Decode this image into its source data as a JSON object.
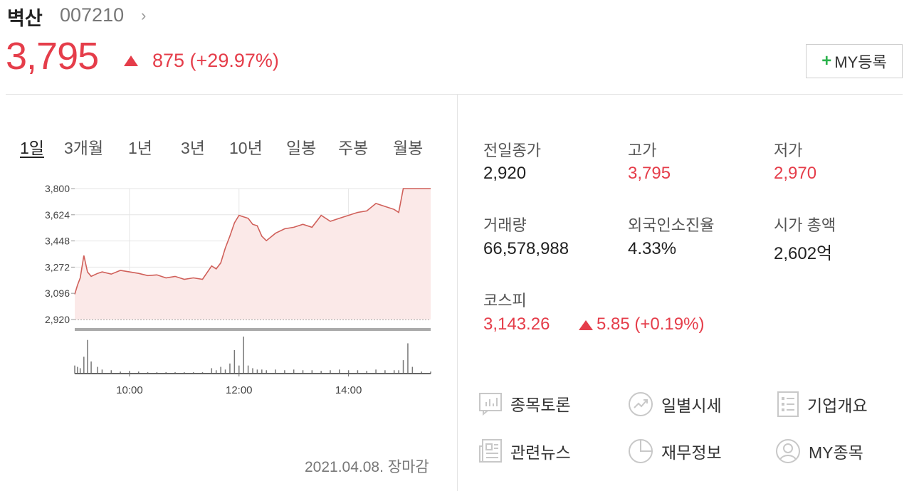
{
  "stock": {
    "name": "벽산",
    "code": "007210",
    "chevron": "›",
    "price": "3,795",
    "change": "875 (+29.97%)",
    "my_button_plus": "+",
    "my_button_label": "MY등록"
  },
  "tabs": [
    "1일",
    "3개월",
    "1년",
    "3년",
    "10년",
    "일봉",
    "주봉",
    "월봉"
  ],
  "active_tab": "1일",
  "stats": {
    "prev_close_label": "전일종가",
    "prev_close": "2,920",
    "high_label": "고가",
    "high": "3,795",
    "low_label": "저가",
    "low": "2,970",
    "volume_label": "거래량",
    "volume": "66,578,988",
    "foreign_label": "외국인소진율",
    "foreign": "4.33%",
    "mktcap_label": "시가 총액",
    "mktcap": "2,602억"
  },
  "kospi": {
    "label": "코스피",
    "value": "3,143.26",
    "change": "5.85 (+0.19%)"
  },
  "links": [
    {
      "label": "종목토론",
      "icon": "discussion-chart-icon"
    },
    {
      "label": "일별시세",
      "icon": "trend-circle-icon"
    },
    {
      "label": "기업개요",
      "icon": "list-document-icon"
    },
    {
      "label": "관련뉴스",
      "icon": "newspaper-icon"
    },
    {
      "label": "재무정보",
      "icon": "pie-chart-icon"
    },
    {
      "label": "MY종목",
      "icon": "user-circle-icon"
    }
  ],
  "as_of": "2021.04.08. 장마감",
  "colors": {
    "up": "#e53d4a",
    "accent_green": "#2bb24c",
    "line": "#d0605a",
    "fill": "#fbe9e8"
  },
  "chart_data": {
    "type": "area",
    "x_tick_labels": [
      "10:00",
      "12:00",
      "14:00"
    ],
    "y_tick_labels": [
      "3,800",
      "3,624",
      "3,448",
      "3,272",
      "3,096",
      "2,920"
    ],
    "ylim": [
      2920,
      3800
    ],
    "xlim": [
      "09:00",
      "15:30"
    ],
    "reference_line": 2920,
    "series": [
      {
        "x": [
          "09:00",
          "09:03",
          "09:06",
          "09:10",
          "09:14",
          "09:18",
          "09:25",
          "09:30",
          "09:40",
          "09:50",
          "10:00",
          "10:10",
          "10:20",
          "10:30",
          "10:40",
          "10:50",
          "11:00",
          "11:10",
          "11:20",
          "11:30",
          "11:35",
          "11:40",
          "11:45",
          "11:50",
          "11:55",
          "12:00",
          "12:05",
          "12:10",
          "12:15",
          "12:20",
          "12:25",
          "12:30",
          "12:40",
          "12:50",
          "13:00",
          "13:10",
          "13:20",
          "13:30",
          "13:40",
          "13:50",
          "14:00",
          "14:10",
          "14:20",
          "14:30",
          "14:40",
          "14:50",
          "14:55",
          "15:00",
          "15:05",
          "15:10",
          "15:20",
          "15:30"
        ],
        "y": [
          3090,
          3150,
          3200,
          3350,
          3240,
          3210,
          3230,
          3240,
          3225,
          3250,
          3240,
          3230,
          3215,
          3220,
          3200,
          3210,
          3190,
          3200,
          3190,
          3280,
          3260,
          3300,
          3400,
          3480,
          3570,
          3620,
          3610,
          3600,
          3560,
          3550,
          3480,
          3450,
          3500,
          3530,
          3540,
          3560,
          3540,
          3620,
          3580,
          3600,
          3620,
          3640,
          3650,
          3700,
          3680,
          3660,
          3640,
          3800,
          3800,
          3800,
          3800,
          3800
        ]
      }
    ],
    "volume": [
      12,
      10,
      8,
      25,
      50,
      18,
      10,
      6,
      5,
      3,
      4,
      3,
      2,
      2,
      2,
      2,
      2,
      2,
      2,
      8,
      5,
      10,
      6,
      15,
      35,
      12,
      55,
      12,
      8,
      6,
      6,
      5,
      6,
      5,
      6,
      5,
      5,
      4,
      5,
      6,
      5,
      5,
      4,
      6,
      5,
      5,
      5,
      20,
      45,
      10,
      3,
      3
    ],
    "grid": true,
    "legend": "none"
  }
}
